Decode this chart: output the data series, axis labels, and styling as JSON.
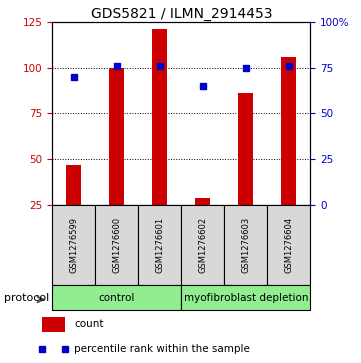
{
  "title": "GDS5821 / ILMN_2914453",
  "samples": [
    "GSM1276599",
    "GSM1276600",
    "GSM1276601",
    "GSM1276602",
    "GSM1276603",
    "GSM1276604"
  ],
  "counts": [
    47,
    100,
    121,
    29,
    86,
    106
  ],
  "percentiles": [
    70,
    76,
    76,
    65,
    75,
    76
  ],
  "bar_color": "#cc0000",
  "dot_color": "#0000cc",
  "ylim_left": [
    25,
    125
  ],
  "ylim_right": [
    0,
    100
  ],
  "yticks_left": [
    25,
    50,
    75,
    100,
    125
  ],
  "yticks_right": [
    0,
    25,
    50,
    75,
    100
  ],
  "ytick_labels_right": [
    "0",
    "25",
    "50",
    "75",
    "100%"
  ],
  "hlines": [
    50,
    75,
    100
  ],
  "control_label": "control",
  "myo_label": "myofibroblast depletion",
  "group_color": "#90ee90",
  "sample_bg_color": "#d8d8d8",
  "protocol_label": "protocol",
  "legend_count_label": "count",
  "legend_pct_label": "percentile rank within the sample",
  "title_fontsize": 10,
  "tick_fontsize": 7.5,
  "sample_fontsize": 6,
  "protocol_fontsize": 8,
  "group_fontsize": 7.5,
  "legend_fontsize": 7.5
}
